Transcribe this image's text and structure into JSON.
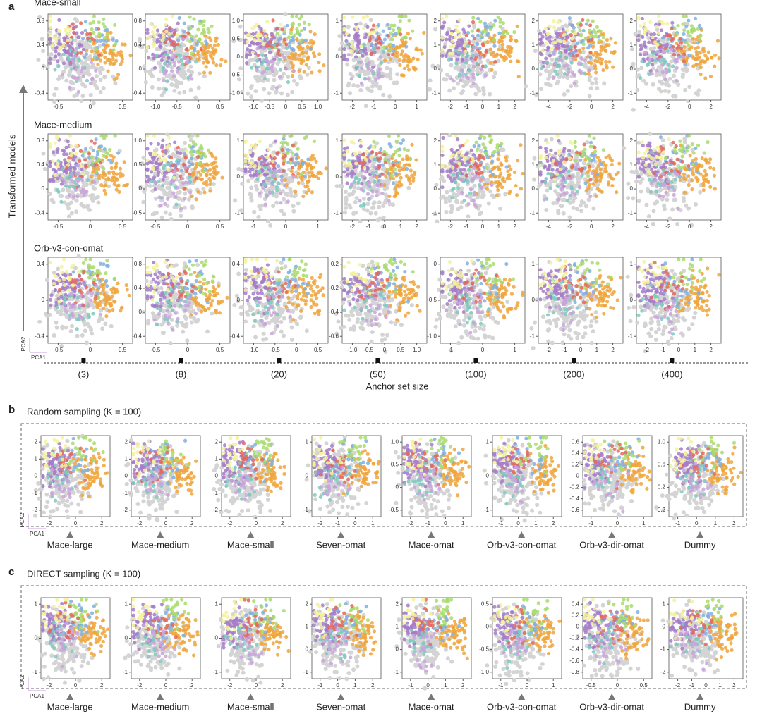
{
  "panel_a": {
    "label": "a",
    "y_axis_title": "Transformed models",
    "x_axis_title": "Anchor set size",
    "pca_y": "PCA2",
    "pca_x": "PCA1",
    "anchor_sizes": [
      "(3)",
      "(8)",
      "(20)",
      "(50)",
      "(100)",
      "(200)",
      "(400)"
    ],
    "rows": [
      {
        "title": "Mace-small",
        "plots": [
          {
            "xticks": [
              "-0.5",
              "0",
              "0.5"
            ],
            "yticks": [
              "0.8",
              "0.4",
              "0",
              "-0.4"
            ]
          },
          {
            "xticks": [
              "-1.0",
              "-0.5",
              "0",
              "0.5"
            ],
            "yticks": [
              "0.8",
              "0.4",
              "0",
              "-0.4"
            ]
          },
          {
            "xticks": [
              "-1.0",
              "-0.5",
              "0",
              "0.5",
              "1.0"
            ],
            "yticks": [
              "1.0",
              "0.5",
              "0",
              "-0.5",
              "-1.0"
            ]
          },
          {
            "xticks": [
              "-2",
              "-1",
              "0",
              "1"
            ],
            "yticks": [
              "1",
              "0",
              "-1"
            ]
          },
          {
            "xticks": [
              "-2",
              "-1",
              "0",
              "1",
              "2"
            ],
            "yticks": [
              "2",
              "1",
              "0",
              "-1"
            ]
          },
          {
            "xticks": [
              "-4",
              "-2",
              "0",
              "2"
            ],
            "yticks": [
              "2",
              "1",
              "0",
              "-1"
            ]
          },
          {
            "xticks": [
              "-4",
              "-2",
              "0",
              "2"
            ],
            "yticks": [
              "2",
              "1",
              "0",
              "-1"
            ]
          }
        ]
      },
      {
        "title": "Mace-medium",
        "plots": [
          {
            "xticks": [
              "-0.5",
              "0",
              "0.5"
            ],
            "yticks": [
              "0.8",
              "0.4",
              "0",
              "-0.4"
            ]
          },
          {
            "xticks": [
              "-0.5",
              "0",
              "0.5"
            ],
            "yticks": [
              "1.0",
              "0.5",
              "0",
              "-0.5"
            ]
          },
          {
            "xticks": [
              "-1",
              "0",
              "1"
            ],
            "yticks": [
              "1",
              "0",
              "-1"
            ]
          },
          {
            "xticks": [
              "-2",
              "-1",
              "0",
              "1",
              "2"
            ],
            "yticks": [
              "1",
              "0",
              "-1"
            ]
          },
          {
            "xticks": [
              "-2",
              "-1",
              "0",
              "1",
              "2"
            ],
            "yticks": [
              "2",
              "1",
              "0",
              "-1"
            ]
          },
          {
            "xticks": [
              "-4",
              "-2",
              "0",
              "2"
            ],
            "yticks": [
              "2",
              "1",
              "0",
              "-1"
            ]
          },
          {
            "xticks": [
              "-4",
              "-2",
              "0",
              "2"
            ],
            "yticks": [
              "2",
              "1",
              "0",
              "-1"
            ]
          }
        ]
      },
      {
        "title": "Orb-v3-con-omat",
        "plots": [
          {
            "xticks": [
              "-0.5",
              "0",
              "0.5"
            ],
            "yticks": [
              "0.4",
              "0",
              "-0.4"
            ]
          },
          {
            "xticks": [
              "-0.5",
              "0",
              "0.5"
            ],
            "yticks": [
              "0.8",
              "0.4",
              "0",
              "-0.4"
            ]
          },
          {
            "xticks": [
              "-1.0",
              "-0.5",
              "0",
              "0.5"
            ],
            "yticks": [
              "0.4",
              "0",
              "-0.4"
            ]
          },
          {
            "xticks": [
              "-1.0",
              "-0.5",
              "0",
              "0.5",
              "1.0"
            ],
            "yticks": [
              "0.2",
              "-0.2",
              "-0.4",
              "-0.6"
            ]
          },
          {
            "xticks": [
              "-1",
              "0",
              "1"
            ],
            "yticks": [
              "0",
              "-0.5",
              "-1.0"
            ]
          },
          {
            "xticks": [
              "-2",
              "-1",
              "0",
              "1",
              "2"
            ],
            "yticks": [
              "1",
              "0",
              "-1"
            ]
          },
          {
            "xticks": [
              "-2",
              "-1",
              "0",
              "1",
              "2"
            ],
            "yticks": [
              "1",
              "0",
              "-1"
            ]
          }
        ]
      }
    ]
  },
  "panel_b": {
    "label": "b",
    "title": "Random sampling (K = 100)",
    "pca_y": "PCA2",
    "pca_x": "PCA1",
    "plots": [
      {
        "model": "Mace-large",
        "xticks": [
          "-2",
          "0",
          "2"
        ],
        "yticks": [
          "2",
          "1",
          "0",
          "-1",
          "-2"
        ]
      },
      {
        "model": "Mace-medium",
        "xticks": [
          "-2",
          "0",
          "2"
        ],
        "yticks": [
          "2",
          "1",
          "0",
          "-1",
          "-2"
        ]
      },
      {
        "model": "Mace-small",
        "xticks": [
          "-2",
          "0",
          "2"
        ],
        "yticks": [
          "2",
          "1",
          "0",
          "-1",
          "-2"
        ]
      },
      {
        "model": "Seven-omat",
        "xticks": [
          "-2",
          "-1",
          "0",
          "1"
        ],
        "yticks": [
          "1",
          "0",
          "-1"
        ]
      },
      {
        "model": "Mace-omat",
        "xticks": [
          "-2",
          "-1",
          "0",
          "1"
        ],
        "yticks": [
          "1.0",
          "0.5",
          "0",
          "-0.5"
        ]
      },
      {
        "model": "Orb-v3-con-omat",
        "xticks": [
          "-1",
          "0",
          "1",
          "2"
        ],
        "yticks": [
          "1",
          "0",
          "-1"
        ]
      },
      {
        "model": "Orb-v3-dir-omat",
        "xticks": [
          "-1",
          "0",
          "1"
        ],
        "yticks": [
          "0.6",
          "0.4",
          "0.2",
          "0",
          "-0.2",
          "-0.4",
          "-0.6"
        ]
      },
      {
        "model": "Dummy",
        "xticks": [
          "-1",
          "0",
          "1",
          "2"
        ],
        "yticks": [
          "1.0",
          "0.6",
          "0.2",
          "-0.2"
        ]
      }
    ]
  },
  "panel_c": {
    "label": "c",
    "title": "DIRECT sampling (K = 100)",
    "pca_y": "PCA2",
    "pca_x": "PCA1",
    "plots": [
      {
        "model": "Mace-large",
        "xticks": [
          "-2",
          "0",
          "2"
        ],
        "yticks": [
          "1",
          "0",
          "-1"
        ]
      },
      {
        "model": "Mace-medium",
        "xticks": [
          "-2",
          "0",
          "2"
        ],
        "yticks": [
          "1",
          "0",
          "-1"
        ]
      },
      {
        "model": "Mace-small",
        "xticks": [
          "-2",
          "0",
          "2"
        ],
        "yticks": [
          "1",
          "0",
          "-1"
        ]
      },
      {
        "model": "Seven-omat",
        "xticks": [
          "-1",
          "0",
          "1",
          "2"
        ],
        "yticks": [
          "2",
          "1",
          "0",
          "-1"
        ]
      },
      {
        "model": "Mace-omat",
        "xticks": [
          "-1",
          "0",
          "1",
          "2"
        ],
        "yticks": [
          "2",
          "1",
          "0",
          "-1"
        ]
      },
      {
        "model": "Orb-v3-con-omat",
        "xticks": [
          "-1",
          "0",
          "1"
        ],
        "yticks": [
          "0.5",
          "0",
          "-0.5",
          "-1.0"
        ]
      },
      {
        "model": "Orb-v3-dir-omat",
        "xticks": [
          "-0.5",
          "0",
          "0.5"
        ],
        "yticks": [
          "0.4",
          "0.2",
          "0",
          "-0.2",
          "-0.4",
          "-0.6",
          "-0.8"
        ]
      },
      {
        "model": "Dummy",
        "xticks": [
          "-2",
          "-1",
          "0",
          "1",
          "2"
        ],
        "yticks": [
          "1",
          "0",
          "-1",
          "-2"
        ]
      }
    ]
  }
}
